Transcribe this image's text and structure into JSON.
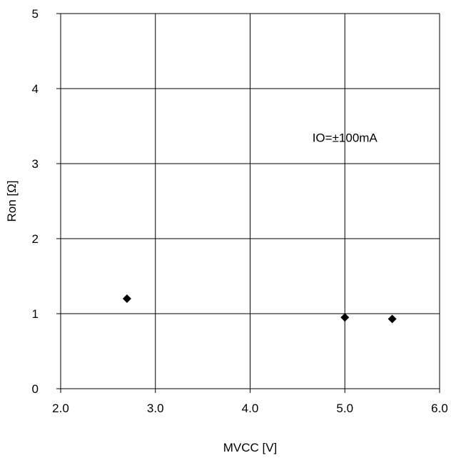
{
  "chart_data": {
    "type": "scatter",
    "xlabel": "MVCC [V]",
    "ylabel": "Ron [Ω]",
    "xlim": [
      2.0,
      6.0
    ],
    "ylim": [
      0,
      5
    ],
    "x_ticks": [
      "2.0",
      "3.0",
      "4.0",
      "5.0",
      "6.0"
    ],
    "y_ticks": [
      "0",
      "1",
      "2",
      "3",
      "4",
      "5"
    ],
    "grid": true,
    "annotation": {
      "text": "IO=±100mA",
      "x": 5.0,
      "y": 3.35
    },
    "series": [
      {
        "marker": "diamond",
        "color": "#000000",
        "points": [
          {
            "x": 2.7,
            "y": 1.2
          },
          {
            "x": 5.0,
            "y": 0.95
          },
          {
            "x": 5.5,
            "y": 0.93
          }
        ]
      }
    ]
  }
}
